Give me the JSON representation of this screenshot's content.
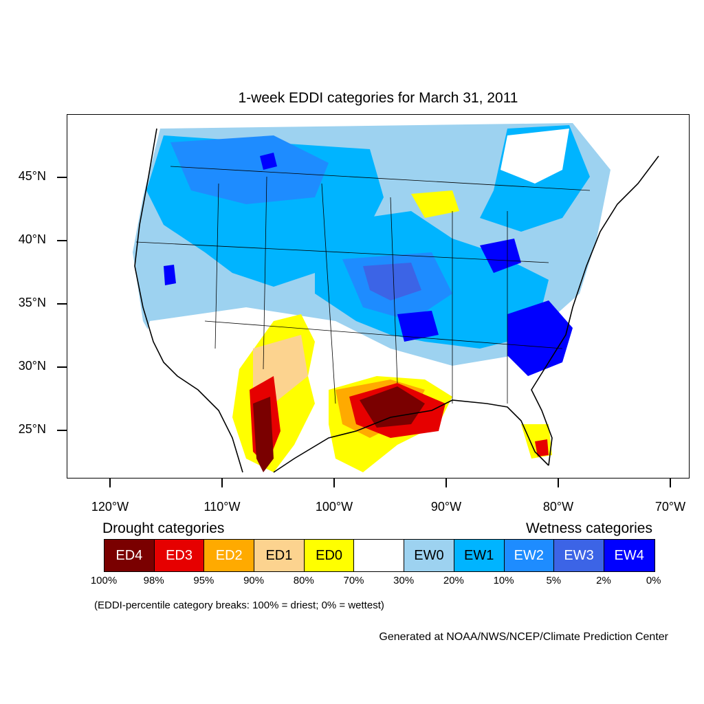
{
  "title": "1-week EDDI categories for March 31, 2011",
  "y_axis": {
    "labels": [
      "45°N",
      "40°N",
      "35°N",
      "30°N",
      "25°N"
    ]
  },
  "x_axis": {
    "labels": [
      "120°W",
      "110°W",
      "100°W",
      "90°W",
      "80°W",
      "70°W"
    ]
  },
  "legend": {
    "drought_title": "Drought categories",
    "wetness_title": "Wetness categories",
    "categories": [
      {
        "label": "ED4",
        "color": "#7a0000",
        "text_color": "#ffffff"
      },
      {
        "label": "ED3",
        "color": "#e60000",
        "text_color": "#ffffff"
      },
      {
        "label": "ED2",
        "color": "#ffaa00",
        "text_color": "#ffffff"
      },
      {
        "label": "ED1",
        "color": "#fcd38f",
        "text_color": "#000000"
      },
      {
        "label": "ED0",
        "color": "#ffff00",
        "text_color": "#000000"
      },
      {
        "label": "",
        "color": "#ffffff",
        "text_color": "#000000"
      },
      {
        "label": "EW0",
        "color": "#9dd2f0",
        "text_color": "#000000"
      },
      {
        "label": "EW1",
        "color": "#00b4ff",
        "text_color": "#000000"
      },
      {
        "label": "EW2",
        "color": "#1e8cff",
        "text_color": "#ffffff"
      },
      {
        "label": "EW3",
        "color": "#3c64e6",
        "text_color": "#ffffff"
      },
      {
        "label": "EW4",
        "color": "#0000ff",
        "text_color": "#ffffff"
      }
    ],
    "breaks": [
      "100%",
      "98%",
      "95%",
      "90%",
      "80%",
      "70%",
      "30%",
      "20%",
      "10%",
      "5%",
      "2%",
      "0%"
    ],
    "note": "(EDDI-percentile category breaks: 100% = driest; 0% = wettest)"
  },
  "credit": "Generated at NOAA/NWS/NCEP/Climate Prediction Center"
}
